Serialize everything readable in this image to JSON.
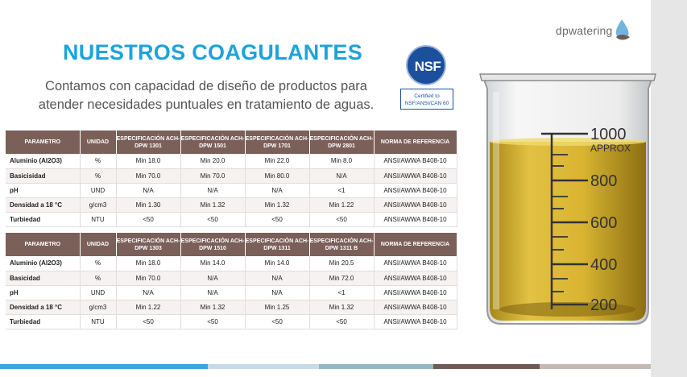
{
  "title": "NUESTROS COAGULANTES",
  "subtitle": "Contamos con capacidad de diseño de productos para atender necesidades puntuales en tratamiento de aguas.",
  "certification": {
    "badge": "NSF",
    "line1": "Certified to",
    "line2": "NSF/ANSI/CAN 60"
  },
  "logo": {
    "text": "dpwatering"
  },
  "beaker": {
    "marks": [
      "1000",
      "APPROX",
      "800",
      "600",
      "400",
      "200"
    ]
  },
  "table1": {
    "headers": [
      "PARAMETRO",
      "UNIDAD",
      "ESPECIFICACIÓN ACH-DPW 1301",
      "ESPECIFICACIÓN ACH-DPW 1501",
      "ESPECIFICACIÓN ACH-DPW 1701",
      "ESPECIFICACIÓN ACH-DPW 2801",
      "NORMA DE REFERENCIA"
    ],
    "rows": [
      [
        "Aluminio (Al2O3)",
        "%",
        "Min 18.0",
        "Min 20.0",
        "Min 22.0",
        "Min 8.0",
        "ANSI/AWWA B408-10"
      ],
      [
        "Basicisidad",
        "%",
        "Min 70.0",
        "Min 70.0",
        "Min 80.0",
        "N/A",
        "ANSI/AWWA B408-10"
      ],
      [
        "pH",
        "UND",
        "N/A",
        "N/A",
        "N/A",
        "<1",
        "ANSI/AWWA B408-10"
      ],
      [
        "Densidad a 18 °C",
        "g/cm3",
        "Min 1.30",
        "Min 1.32",
        "Min 1.32",
        "Min 1.22",
        "ANSI/AWWA B408-10"
      ],
      [
        "Turbiedad",
        "NTU",
        "<50",
        "<50",
        "<50",
        "<50",
        "ANSI/AWWA B408-10"
      ]
    ]
  },
  "table2": {
    "headers": [
      "PARAMETRO",
      "UNIDAD",
      "ESPECIFICACIÓN ACH-DPW 1303",
      "ESPECIFICACIÓN ACH-DPW 1510",
      "ESPECIFICACIÓN ACH-DPW 1311",
      "ESPECIFICACIÓN ACH-DPW 1311 B",
      "NORMA DE REFERENCIA"
    ],
    "rows": [
      [
        "Aluminio (Al2O3)",
        "%",
        "Min 18.0",
        "Min 14.0",
        "Min 14.0",
        "Min 20.5",
        "ANSI/AWWA B408-10"
      ],
      [
        "Basicidad",
        "%",
        "Min 70.0",
        "N/A",
        "N/A",
        "Min 72.0",
        "ANSI/AWWA B408-10"
      ],
      [
        "pH",
        "UND",
        "N/A",
        "N/A",
        "N/A",
        "<1",
        "ANSI/AWWA B408-10"
      ],
      [
        "Densidad a 18 °C",
        "g/cm3",
        "Min 1.22",
        "Min 1.32",
        "Min 1.25",
        "Min 1.32",
        "ANSI/AWWA B408-10"
      ],
      [
        "Turbiedad",
        "NTU",
        "<50",
        "<50",
        "<50",
        "<50",
        "ANSI/AWWA B408-10"
      ]
    ]
  },
  "colors": {
    "title": "#1ca3dc",
    "table_header": "#7b5f59",
    "liquid": "#d9b431"
  }
}
